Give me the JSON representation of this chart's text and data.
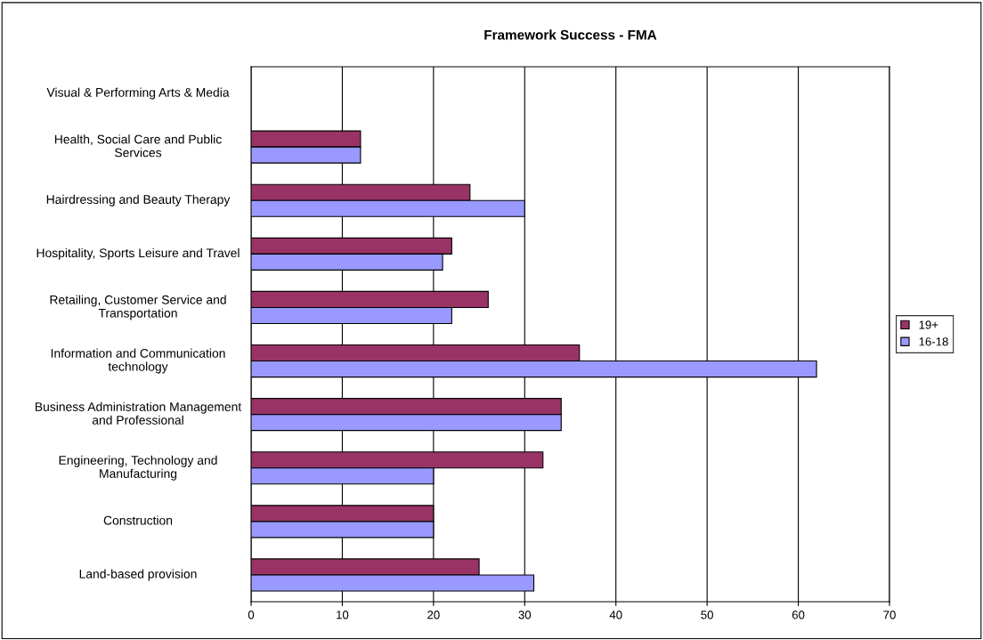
{
  "chart_data": {
    "type": "bar",
    "orientation": "horizontal",
    "title": "Framework Success - FMA",
    "categories": [
      "Visual & Performing Arts & Media",
      "Health, Social Care and Public Services",
      "Hairdressing and Beauty Therapy",
      "Hospitality, Sports Leisure and Travel",
      "Retailing, Customer Service and Transportation",
      "Information and Communication technology",
      "Business Administration Management and Professional",
      "Engineering, Technology and Manufacturing",
      "Construction",
      "Land-based provision"
    ],
    "series": [
      {
        "name": "19+",
        "color": "#993366",
        "values": [
          null,
          12,
          24,
          22,
          26,
          36,
          34,
          32,
          20,
          25
        ]
      },
      {
        "name": "16-18",
        "color": "#9999ff",
        "values": [
          null,
          12,
          30,
          21,
          22,
          62,
          34,
          20,
          20,
          31
        ]
      }
    ],
    "xlim": [
      0,
      70
    ],
    "xticks": [
      0,
      10,
      20,
      30,
      40,
      50,
      60,
      70
    ],
    "grid": "x",
    "legend": "right"
  }
}
